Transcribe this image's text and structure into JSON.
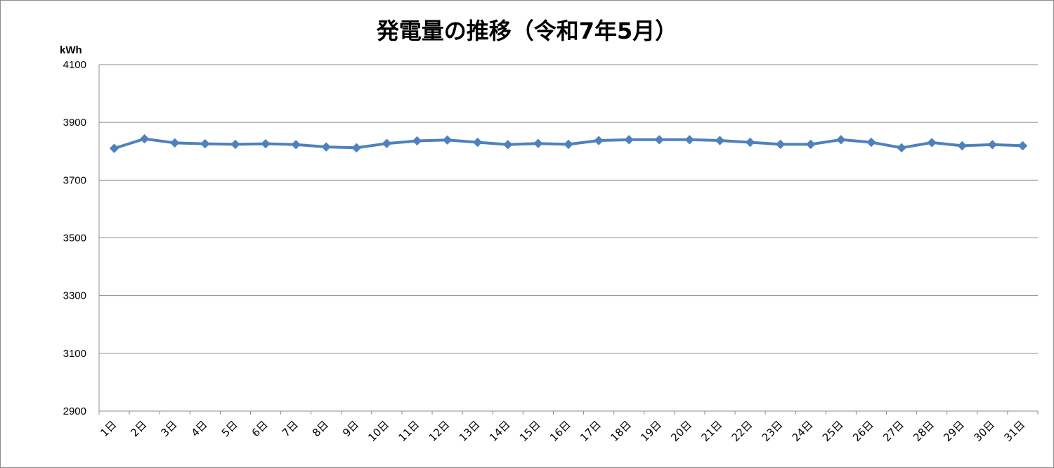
{
  "chart_data": {
    "type": "line",
    "title": "発電量の推移（令和7年5月）",
    "ylabel": "kWh",
    "xlabel": "",
    "ylim": [
      2900,
      4100
    ],
    "yticks": [
      2900,
      3100,
      3300,
      3500,
      3700,
      3900,
      4100
    ],
    "grid": true,
    "legend": "none",
    "categories": [
      "1日",
      "2日",
      "3日",
      "4日",
      "5日",
      "6日",
      "7日",
      "8日",
      "9日",
      "10日",
      "11日",
      "12日",
      "13日",
      "14日",
      "15日",
      "16日",
      "17日",
      "18日",
      "19日",
      "20日",
      "21日",
      "22日",
      "23日",
      "24日",
      "25日",
      "26日",
      "27日",
      "28日",
      "29日",
      "30日",
      "31日"
    ],
    "series": [
      {
        "values": [
          3810,
          3843,
          3829,
          3826,
          3824,
          3826,
          3823,
          3815,
          3812,
          3827,
          3836,
          3839,
          3831,
          3823,
          3827,
          3824,
          3837,
          3840,
          3840,
          3840,
          3837,
          3831,
          3824,
          3824,
          3840,
          3831,
          3812,
          3830,
          3819,
          3823,
          3819
        ],
        "color": "#4f81bd",
        "marker": "diamond"
      }
    ]
  }
}
